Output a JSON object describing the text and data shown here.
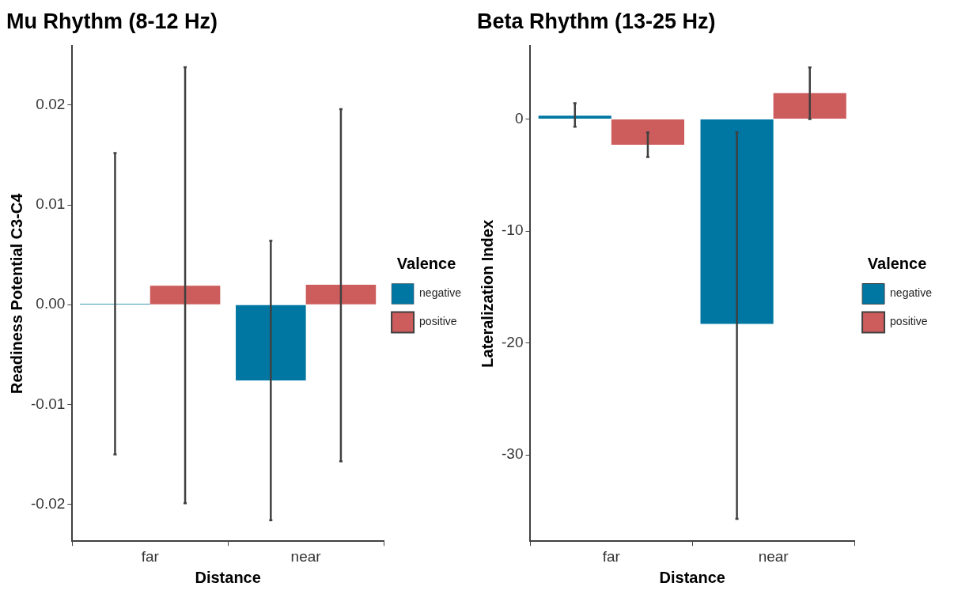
{
  "chart_data": [
    {
      "type": "bar",
      "title": "Mu Rhythm (8-12 Hz)",
      "xlabel": "Distance",
      "ylabel": "Readiness Potential C3-C4",
      "legend_title": "Valence",
      "legend": "right",
      "grid": false,
      "categories": [
        "far",
        "near"
      ],
      "ylim": [
        -0.0237,
        0.0259
      ],
      "yticks": [
        {
          "value": -0.02,
          "label": "-0.02"
        },
        {
          "value": -0.01,
          "label": "-0.01"
        },
        {
          "value": 0,
          "label": "0.00"
        },
        {
          "value": 0.01,
          "label": "0.01"
        },
        {
          "value": 0.02,
          "label": "0.02"
        }
      ],
      "series": [
        {
          "name": "negative",
          "color": "#0077a3",
          "values": [
            0.0001,
            -0.0076
          ],
          "errors": [
            [
              -0.015,
              0.0152
            ],
            [
              -0.0216,
              0.0064
            ]
          ]
        },
        {
          "name": "positive",
          "color": "#cd5c5c",
          "values": [
            0.0019,
            0.002
          ],
          "errors": [
            [
              -0.0199,
              0.0238
            ],
            [
              -0.0157,
              0.0196
            ]
          ]
        }
      ]
    },
    {
      "type": "bar",
      "title": "Beta Rhythm (13-25 Hz)",
      "xlabel": "Distance",
      "ylabel": "Lateralization Index",
      "legend_title": "Valence",
      "legend": "right",
      "grid": false,
      "categories": [
        "far",
        "near"
      ],
      "ylim": [
        -37.7,
        6.5
      ],
      "yticks": [
        -30,
        -20,
        -10,
        0
      ],
      "series": [
        {
          "name": "negative",
          "color": "#0077a3",
          "values": [
            0.3,
            -18.3
          ],
          "errors": [
            [
              -0.7,
              1.4
            ],
            [
              -35.7,
              -1.2
            ]
          ]
        },
        {
          "name": "positive",
          "color": "#cd5c5c",
          "values": [
            -2.3,
            2.3
          ],
          "errors": [
            [
              -3.4,
              -1.2
            ],
            [
              0,
              4.6
            ]
          ]
        }
      ]
    }
  ]
}
